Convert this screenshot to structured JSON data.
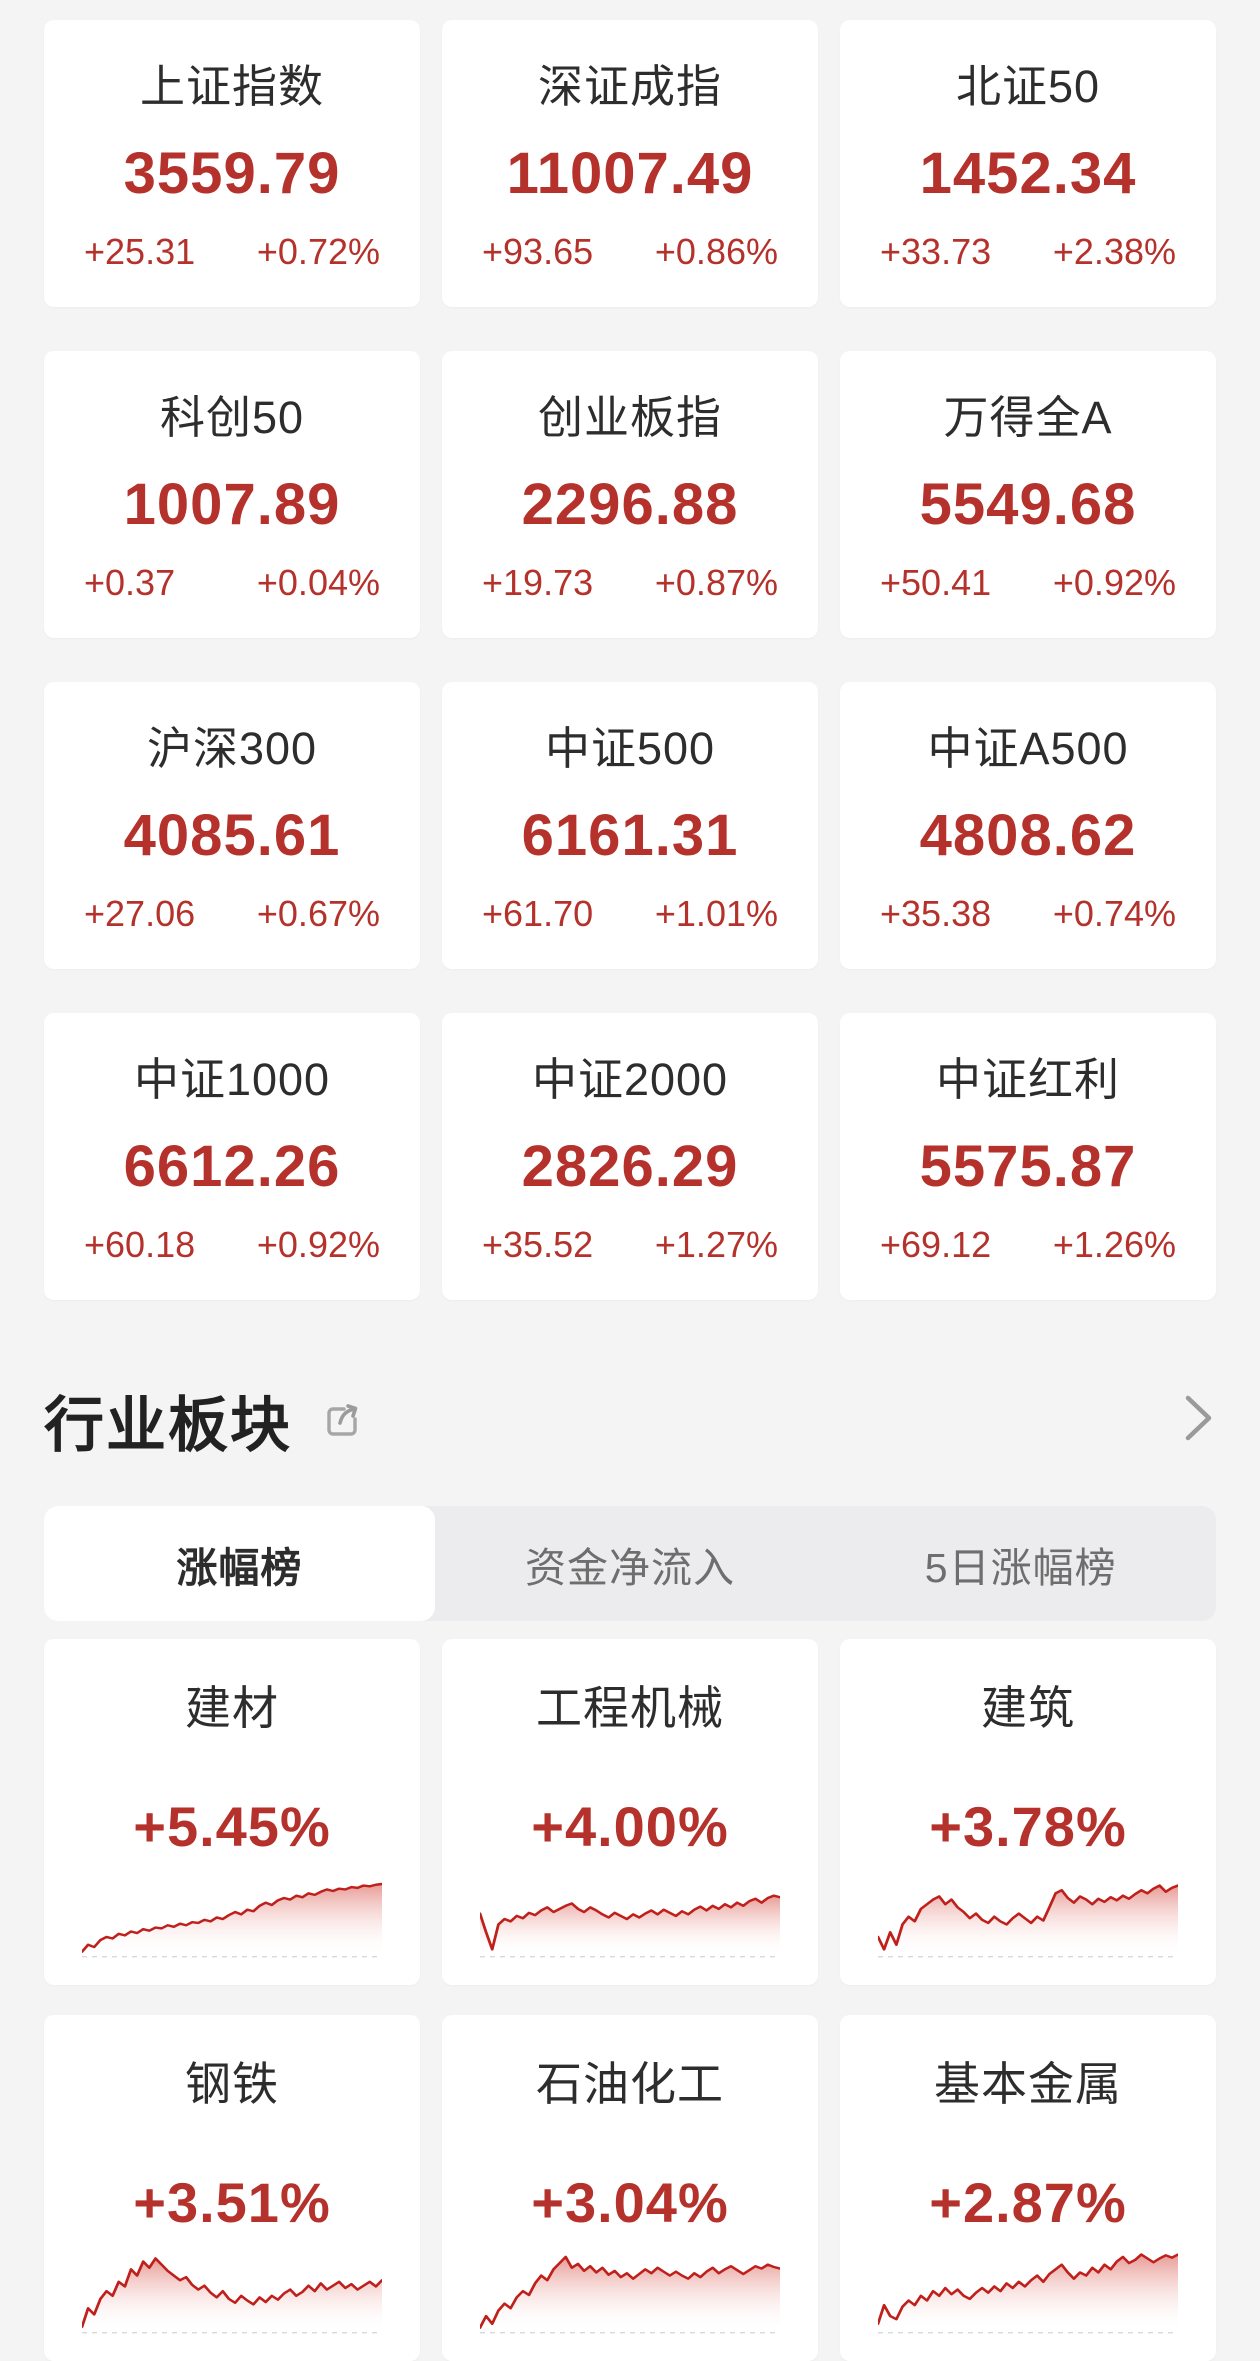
{
  "page": {
    "background": "#f4f4f5",
    "card_background": "#ffffff"
  },
  "colors": {
    "up_red": "#b5312b",
    "chart_line_red": "#bf201c",
    "chart_fill_top": "#d5493f",
    "title_text": "#2d2d2d",
    "tab_inactive_text": "#6e6e6e",
    "icon_gray": "#9b9b9b"
  },
  "icons": {
    "section_share": "share-icon",
    "section_more": "chevron-right-icon"
  },
  "indices": [
    {
      "name": "上证指数",
      "value": "3559.79",
      "change": "+25.31",
      "change_pct": "+0.72%"
    },
    {
      "name": "深证成指",
      "value": "11007.49",
      "change": "+93.65",
      "change_pct": "+0.86%"
    },
    {
      "name": "北证50",
      "value": "1452.34",
      "change": "+33.73",
      "change_pct": "+2.38%"
    },
    {
      "name": "科创50",
      "value": "1007.89",
      "change": "+0.37",
      "change_pct": "+0.04%"
    },
    {
      "name": "创业板指",
      "value": "2296.88",
      "change": "+19.73",
      "change_pct": "+0.87%"
    },
    {
      "name": "万得全A",
      "value": "5549.68",
      "change": "+50.41",
      "change_pct": "+0.92%"
    },
    {
      "name": "沪深300",
      "value": "4085.61",
      "change": "+27.06",
      "change_pct": "+0.67%"
    },
    {
      "name": "中证500",
      "value": "6161.31",
      "change": "+61.70",
      "change_pct": "+1.01%"
    },
    {
      "name": "中证A500",
      "value": "4808.62",
      "change": "+35.38",
      "change_pct": "+0.74%"
    },
    {
      "name": "中证1000",
      "value": "6612.26",
      "change": "+60.18",
      "change_pct": "+0.92%"
    },
    {
      "name": "中证2000",
      "value": "2826.29",
      "change": "+35.52",
      "change_pct": "+1.27%"
    },
    {
      "name": "中证红利",
      "value": "5575.87",
      "change": "+69.12",
      "change_pct": "+1.26%"
    }
  ],
  "sector_section": {
    "title": "行业板块",
    "tabs": [
      {
        "label": "涨幅榜",
        "active": true
      },
      {
        "label": "资金净流入",
        "active": false
      },
      {
        "label": "5日涨幅榜",
        "active": false
      }
    ]
  },
  "chart_data": [
    {
      "type": "area",
      "name": "建材",
      "change_pct": "+5.45%",
      "layout": {
        "axes": false,
        "grid": false,
        "baseline": "dashed"
      },
      "values": [
        0.03,
        0.12,
        0.09,
        0.18,
        0.22,
        0.2,
        0.26,
        0.24,
        0.29,
        0.27,
        0.32,
        0.3,
        0.34,
        0.33,
        0.37,
        0.35,
        0.39,
        0.37,
        0.41,
        0.4,
        0.44,
        0.42,
        0.47,
        0.45,
        0.5,
        0.54,
        0.51,
        0.57,
        0.55,
        0.62,
        0.66,
        0.63,
        0.69,
        0.72,
        0.7,
        0.75,
        0.73,
        0.78,
        0.76,
        0.8,
        0.83,
        0.81,
        0.84,
        0.83,
        0.86,
        0.85,
        0.88,
        0.87,
        0.89,
        0.9
      ]
    },
    {
      "type": "area",
      "name": "工程机械",
      "change_pct": "+4.00%",
      "layout": {
        "axes": false,
        "grid": false,
        "baseline": "dashed"
      },
      "values": [
        0.52,
        0.28,
        0.06,
        0.38,
        0.45,
        0.42,
        0.49,
        0.46,
        0.53,
        0.5,
        0.56,
        0.6,
        0.54,
        0.58,
        0.62,
        0.65,
        0.58,
        0.54,
        0.6,
        0.56,
        0.51,
        0.47,
        0.53,
        0.49,
        0.45,
        0.51,
        0.47,
        0.52,
        0.56,
        0.51,
        0.57,
        0.53,
        0.49,
        0.55,
        0.51,
        0.57,
        0.61,
        0.56,
        0.62,
        0.58,
        0.64,
        0.6,
        0.66,
        0.62,
        0.68,
        0.71,
        0.66,
        0.72,
        0.75,
        0.73
      ]
    },
    {
      "type": "area",
      "name": "建筑",
      "change_pct": "+3.78%",
      "layout": {
        "axes": false,
        "grid": false,
        "baseline": "dashed"
      },
      "values": [
        0.22,
        0.06,
        0.28,
        0.12,
        0.38,
        0.48,
        0.42,
        0.58,
        0.64,
        0.7,
        0.74,
        0.64,
        0.7,
        0.6,
        0.54,
        0.46,
        0.52,
        0.44,
        0.4,
        0.48,
        0.42,
        0.38,
        0.46,
        0.52,
        0.46,
        0.4,
        0.48,
        0.43,
        0.6,
        0.78,
        0.82,
        0.72,
        0.66,
        0.74,
        0.7,
        0.64,
        0.71,
        0.67,
        0.73,
        0.69,
        0.75,
        0.71,
        0.77,
        0.82,
        0.78,
        0.84,
        0.88,
        0.8,
        0.85,
        0.88
      ]
    },
    {
      "type": "area",
      "name": "钢铁",
      "change_pct": "+3.51%",
      "layout": {
        "axes": false,
        "grid": false,
        "baseline": "dashed"
      },
      "values": [
        0.04,
        0.28,
        0.2,
        0.4,
        0.5,
        0.44,
        0.62,
        0.56,
        0.78,
        0.7,
        0.88,
        0.8,
        0.92,
        0.84,
        0.76,
        0.7,
        0.64,
        0.68,
        0.58,
        0.52,
        0.57,
        0.48,
        0.42,
        0.5,
        0.4,
        0.35,
        0.44,
        0.38,
        0.33,
        0.42,
        0.36,
        0.44,
        0.39,
        0.47,
        0.52,
        0.44,
        0.49,
        0.57,
        0.5,
        0.6,
        0.52,
        0.57,
        0.62,
        0.54,
        0.59,
        0.52,
        0.57,
        0.62,
        0.56,
        0.64
      ]
    },
    {
      "type": "area",
      "name": "石油化工",
      "change_pct": "+3.04%",
      "layout": {
        "axes": false,
        "grid": false,
        "baseline": "dashed"
      },
      "values": [
        0.03,
        0.18,
        0.08,
        0.25,
        0.34,
        0.28,
        0.42,
        0.5,
        0.45,
        0.6,
        0.7,
        0.64,
        0.78,
        0.86,
        0.94,
        0.8,
        0.85,
        0.76,
        0.82,
        0.74,
        0.8,
        0.71,
        0.76,
        0.68,
        0.73,
        0.66,
        0.72,
        0.78,
        0.73,
        0.8,
        0.75,
        0.7,
        0.75,
        0.7,
        0.66,
        0.73,
        0.68,
        0.75,
        0.8,
        0.73,
        0.78,
        0.82,
        0.77,
        0.72,
        0.77,
        0.82,
        0.79,
        0.84,
        0.81,
        0.79
      ]
    },
    {
      "type": "area",
      "name": "基本金属",
      "change_pct": "+2.87%",
      "layout": {
        "axes": false,
        "grid": false,
        "baseline": "dashed"
      },
      "values": [
        0.08,
        0.32,
        0.18,
        0.14,
        0.3,
        0.38,
        0.32,
        0.44,
        0.38,
        0.5,
        0.44,
        0.54,
        0.46,
        0.52,
        0.44,
        0.4,
        0.48,
        0.54,
        0.48,
        0.56,
        0.5,
        0.6,
        0.54,
        0.62,
        0.56,
        0.64,
        0.7,
        0.62,
        0.72,
        0.78,
        0.84,
        0.74,
        0.66,
        0.74,
        0.7,
        0.8,
        0.74,
        0.84,
        0.78,
        0.88,
        0.94,
        0.86,
        0.9,
        0.97,
        0.92,
        0.87,
        0.92,
        0.96,
        0.93,
        0.97
      ]
    }
  ]
}
